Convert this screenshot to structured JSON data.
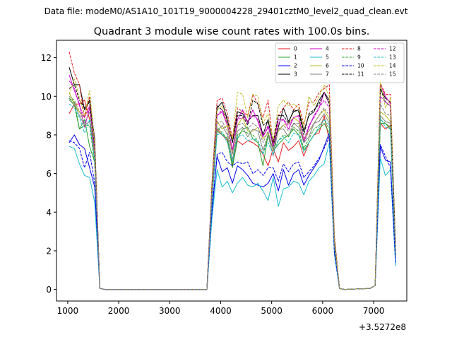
{
  "figure": {
    "suptitle": "Data file: modeM0/AS1A10_101T19_9000004228_29401cztM0_level2_quad_clean.evt"
  },
  "chart_data": {
    "type": "line",
    "title": "Quadrant 3 module wise count rates with 100.0s bins.",
    "xlabel": "",
    "ylabel": "",
    "x_offset_label": "+3.5272e8",
    "xlim": [
      780,
      7650
    ],
    "ylim": [
      -0.6,
      12.9
    ],
    "xticks": [
      1000,
      2000,
      3000,
      4000,
      5000,
      6000,
      7000
    ],
    "xtick_labels": [
      "1000",
      "2000",
      "3000",
      "4000",
      "5000",
      "6000",
      "7000"
    ],
    "yticks": [
      0,
      2,
      4,
      6,
      8,
      10,
      12
    ],
    "ytick_labels": [
      "0",
      "2",
      "4",
      "6",
      "8",
      "10",
      "12"
    ],
    "grid": false,
    "legend_position": "top-right",
    "legend_columns": 4,
    "x": [
      1030,
      1130,
      1230,
      1330,
      1430,
      1530,
      1630,
      1730,
      3730,
      3830,
      3930,
      4030,
      4130,
      4230,
      4330,
      4430,
      4530,
      4630,
      4730,
      4830,
      4930,
      5030,
      5130,
      5230,
      5330,
      5430,
      5530,
      5630,
      5730,
      5830,
      5930,
      6030,
      6130,
      6230,
      6330,
      6430,
      6930,
      7030,
      7130,
      7230,
      7330,
      7430
    ],
    "series": [
      {
        "name": "0",
        "color": "#e41a1c",
        "dash": "solid",
        "values": [
          9.1,
          9.6,
          9.6,
          9.8,
          8.8,
          6.9,
          0.05,
          0.0,
          0.0,
          4.8,
          8.3,
          8.0,
          7.7,
          6.4,
          7.7,
          7.5,
          7.7,
          7.6,
          7.4,
          7.0,
          6.4,
          7.3,
          6.6,
          7.6,
          7.2,
          7.4,
          7.7,
          6.9,
          7.6,
          8.0,
          8.1,
          9.0,
          7.7,
          2.4,
          0.05,
          0.0,
          0.05,
          0.2,
          8.6,
          8.3,
          8.5,
          1.7
        ]
      },
      {
        "name": "1",
        "color": "#2ca02c",
        "dash": "solid",
        "values": [
          9.9,
          9.7,
          8.3,
          8.8,
          7.4,
          6.6,
          0.05,
          0.0,
          0.0,
          4.6,
          8.2,
          8.0,
          7.8,
          6.3,
          7.8,
          8.3,
          8.4,
          7.8,
          7.6,
          6.4,
          8.0,
          7.2,
          7.5,
          7.8,
          8.0,
          8.3,
          8.0,
          7.2,
          7.6,
          8.0,
          8.3,
          8.6,
          8.1,
          2.2,
          0.05,
          0.0,
          0.05,
          0.2,
          8.6,
          8.6,
          8.3,
          1.8
        ]
      },
      {
        "name": "2",
        "color": "#0000ee",
        "dash": "solid",
        "values": [
          7.6,
          8.0,
          7.5,
          7.3,
          6.3,
          5.3,
          0.05,
          0.0,
          0.0,
          4.0,
          6.9,
          6.1,
          6.3,
          5.5,
          6.4,
          6.2,
          5.9,
          5.5,
          5.4,
          5.3,
          5.5,
          6.0,
          5.1,
          6.2,
          5.4,
          6.0,
          6.2,
          5.4,
          5.9,
          6.3,
          6.7,
          7.4,
          8.1,
          1.9,
          0.05,
          0.0,
          0.05,
          0.2,
          7.4,
          6.7,
          6.6,
          1.3
        ]
      },
      {
        "name": "3",
        "color": "#000000",
        "dash": "solid",
        "values": [
          11.5,
          10.6,
          10.6,
          9.3,
          9.8,
          7.8,
          0.05,
          0.0,
          0.0,
          5.5,
          9.4,
          9.7,
          8.8,
          7.6,
          9.2,
          9.1,
          8.7,
          9.0,
          9.0,
          8.0,
          8.8,
          7.4,
          8.4,
          9.4,
          8.7,
          9.2,
          9.3,
          8.2,
          9.0,
          9.2,
          9.8,
          10.2,
          9.8,
          2.6,
          0.05,
          0.0,
          0.05,
          0.2,
          10.4,
          9.9,
          9.7,
          2.1
        ]
      },
      {
        "name": "4",
        "color": "#cc00cc",
        "dash": "solid",
        "values": [
          11.1,
          10.3,
          9.6,
          8.4,
          9.4,
          7.2,
          0.05,
          0.0,
          0.0,
          5.3,
          9.0,
          9.2,
          8.5,
          7.2,
          8.8,
          9.3,
          8.6,
          9.3,
          8.7,
          7.9,
          8.4,
          7.6,
          8.8,
          8.8,
          8.3,
          8.9,
          9.0,
          7.6,
          8.4,
          9.0,
          9.4,
          10.2,
          9.6,
          2.4,
          0.05,
          0.0,
          0.05,
          0.2,
          10.6,
          10.0,
          9.6,
          2.0
        ]
      },
      {
        "name": "5",
        "color": "#17becf",
        "dash": "solid",
        "values": [
          7.4,
          7.3,
          6.5,
          5.9,
          5.8,
          4.5,
          0.05,
          0.0,
          0.0,
          3.7,
          6.2,
          5.3,
          5.6,
          5.0,
          5.5,
          5.8,
          5.4,
          5.3,
          5.5,
          5.1,
          4.6,
          5.8,
          4.3,
          5.2,
          5.3,
          5.6,
          5.5,
          4.9,
          5.6,
          5.9,
          6.3,
          6.5,
          7.6,
          1.8,
          0.05,
          0.0,
          0.05,
          0.2,
          6.8,
          5.9,
          6.2,
          1.2
        ]
      },
      {
        "name": "6",
        "color": "#bcbd22",
        "dash": "solid",
        "values": [
          10.2,
          9.6,
          9.2,
          8.9,
          9.5,
          7.0,
          0.05,
          0.0,
          0.0,
          5.0,
          8.7,
          8.3,
          8.5,
          7.0,
          8.5,
          8.9,
          8.2,
          8.2,
          8.4,
          7.8,
          8.1,
          7.2,
          8.2,
          8.5,
          8.6,
          8.9,
          8.7,
          7.8,
          8.2,
          8.6,
          9.0,
          9.3,
          8.8,
          2.3,
          0.05,
          0.0,
          0.05,
          0.2,
          9.2,
          9.0,
          8.7,
          1.9
        ]
      },
      {
        "name": "7",
        "color": "#7f7f7f",
        "dash": "solid",
        "values": [
          9.8,
          9.6,
          9.0,
          8.5,
          8.7,
          6.7,
          0.05,
          0.0,
          0.0,
          4.8,
          8.2,
          8.5,
          8.0,
          6.7,
          8.2,
          8.4,
          7.9,
          8.3,
          8.2,
          7.2,
          8.0,
          6.9,
          8.3,
          8.3,
          7.9,
          8.6,
          8.4,
          7.6,
          7.9,
          8.6,
          8.7,
          9.1,
          8.6,
          2.3,
          0.05,
          0.0,
          0.05,
          0.2,
          9.0,
          8.7,
          8.6,
          1.8
        ]
      },
      {
        "name": "8",
        "color": "#e41a1c",
        "dash": "dashed",
        "values": [
          12.3,
          11.2,
          10.6,
          8.9,
          10.0,
          7.6,
          0.05,
          0.0,
          0.0,
          5.6,
          9.8,
          9.9,
          9.1,
          7.8,
          9.4,
          9.2,
          9.0,
          10.1,
          9.6,
          8.9,
          9.8,
          7.5,
          9.0,
          9.4,
          9.7,
          9.3,
          9.6,
          8.5,
          9.7,
          9.7,
          10.2,
          10.4,
          10.6,
          2.8,
          0.05,
          0.0,
          0.05,
          0.2,
          10.7,
          10.1,
          10.1,
          2.2
        ]
      },
      {
        "name": "9",
        "color": "#2ca02c",
        "dash": "dashed",
        "values": [
          9.9,
          9.5,
          8.3,
          8.5,
          8.5,
          6.5,
          0.05,
          0.0,
          0.0,
          4.7,
          8.4,
          8.1,
          7.8,
          6.5,
          8.0,
          8.2,
          8.1,
          8.0,
          7.7,
          7.0,
          8.0,
          7.3,
          7.7,
          8.0,
          7.9,
          8.4,
          8.2,
          7.3,
          7.8,
          8.3,
          8.5,
          8.8,
          8.3,
          2.3,
          0.05,
          0.0,
          0.05,
          0.2,
          8.8,
          8.6,
          8.4,
          1.8
        ]
      },
      {
        "name": "10",
        "color": "#0000ee",
        "dash": "dashed",
        "values": [
          7.7,
          7.6,
          7.3,
          6.3,
          7.1,
          5.5,
          0.05,
          0.0,
          0.0,
          4.2,
          7.0,
          7.1,
          6.6,
          6.4,
          6.6,
          6.5,
          6.6,
          6.0,
          6.2,
          5.9,
          6.3,
          6.3,
          5.6,
          6.5,
          6.1,
          6.5,
          6.6,
          5.8,
          6.1,
          6.4,
          6.8,
          7.3,
          7.9,
          1.9,
          0.05,
          0.0,
          0.05,
          0.2,
          7.5,
          6.9,
          6.3,
          1.4
        ]
      },
      {
        "name": "11",
        "color": "#000000",
        "dash": "dashed",
        "values": [
          10.4,
          10.6,
          9.8,
          9.4,
          9.7,
          7.3,
          0.05,
          0.0,
          0.0,
          5.3,
          9.5,
          9.3,
          8.8,
          7.6,
          9.0,
          9.0,
          8.5,
          9.8,
          9.6,
          8.5,
          8.7,
          7.6,
          9.0,
          9.0,
          8.6,
          9.3,
          9.2,
          8.0,
          9.1,
          9.3,
          9.6,
          10.2,
          9.6,
          2.5,
          0.05,
          0.0,
          0.05,
          0.2,
          10.4,
          9.7,
          9.5,
          2.1
        ]
      },
      {
        "name": "12",
        "color": "#cc00cc",
        "dash": "dashed",
        "values": [
          10.8,
          10.4,
          9.5,
          8.9,
          9.5,
          7.2,
          0.05,
          0.0,
          0.0,
          5.1,
          9.0,
          9.3,
          8.6,
          7.2,
          8.8,
          8.9,
          8.7,
          9.0,
          8.8,
          7.9,
          8.5,
          7.4,
          8.6,
          8.8,
          8.5,
          8.9,
          9.0,
          7.7,
          8.5,
          8.9,
          9.4,
          9.8,
          9.4,
          2.4,
          0.05,
          0.0,
          0.05,
          0.2,
          10.0,
          9.7,
          9.5,
          2.0
        ]
      },
      {
        "name": "13",
        "color": "#17becf",
        "dash": "dashed",
        "values": [
          9.6,
          9.4,
          8.9,
          8.1,
          8.8,
          6.6,
          0.05,
          0.0,
          0.0,
          4.6,
          8.0,
          8.1,
          7.6,
          6.6,
          7.9,
          8.0,
          7.7,
          7.8,
          7.7,
          7.0,
          7.6,
          7.0,
          7.7,
          7.9,
          7.6,
          8.1,
          8.0,
          7.1,
          7.6,
          8.0,
          8.4,
          8.8,
          8.5,
          2.2,
          0.05,
          0.0,
          0.05,
          0.2,
          8.9,
          8.4,
          8.3,
          1.8
        ]
      },
      {
        "name": "14",
        "color": "#bcbd22",
        "dash": "dashed",
        "values": [
          10.1,
          10.9,
          9.9,
          9.0,
          10.3,
          7.5,
          0.05,
          0.0,
          0.0,
          5.4,
          9.3,
          9.5,
          8.6,
          7.8,
          10.2,
          10.1,
          8.9,
          10.1,
          10.0,
          8.6,
          9.1,
          7.7,
          9.5,
          9.8,
          9.5,
          9.6,
          9.4,
          8.4,
          10.0,
          9.5,
          10.0,
          10.6,
          10.0,
          2.6,
          0.05,
          0.0,
          0.05,
          0.2,
          10.8,
          9.4,
          9.9,
          2.1
        ]
      },
      {
        "name": "15",
        "color": "#7f7f7f",
        "dash": "dashed",
        "values": [
          10.0,
          9.8,
          9.2,
          8.6,
          9.2,
          6.9,
          0.05,
          0.0,
          0.0,
          5.0,
          8.6,
          8.7,
          8.2,
          7.0,
          8.5,
          8.6,
          8.3,
          8.6,
          8.4,
          7.6,
          8.2,
          7.2,
          8.3,
          8.5,
          8.2,
          8.6,
          8.6,
          7.6,
          8.2,
          8.6,
          9.0,
          9.4,
          9.0,
          2.3,
          0.05,
          0.0,
          0.05,
          0.2,
          9.6,
          9.1,
          9.0,
          1.9
        ]
      }
    ]
  }
}
